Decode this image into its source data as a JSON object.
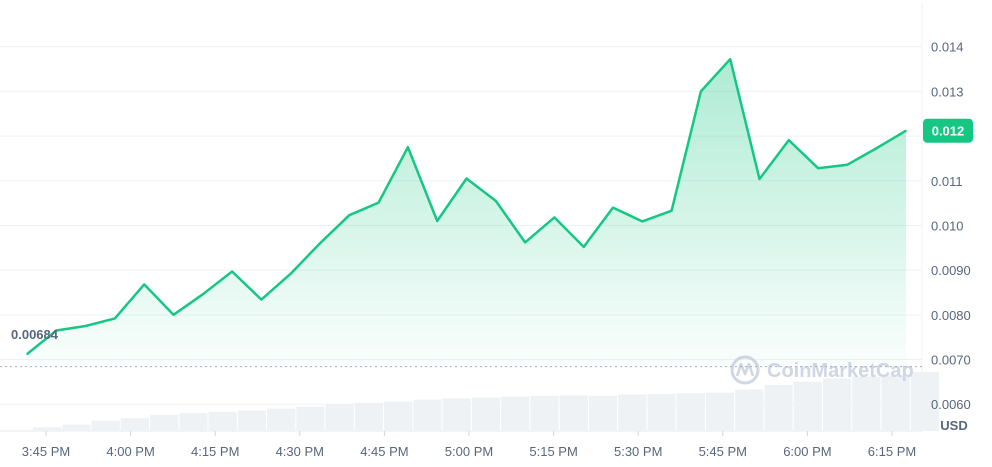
{
  "chart_data": {
    "type": "area",
    "unit_label": "USD",
    "watermark": "CoinMarketCap",
    "line_color": "#16c784",
    "volume_color": "#eff2f5",
    "x_ticks": [
      "3:45 PM",
      "4:00 PM",
      "4:15 PM",
      "4:30 PM",
      "4:45 PM",
      "5:00 PM",
      "5:15 PM",
      "5:30 PM",
      "5:45 PM",
      "6:00 PM",
      "6:15 PM"
    ],
    "y_ticks": [
      "0.014",
      "0.013",
      "0.012",
      "0.011",
      "0.010",
      "0.0090",
      "0.0080",
      "0.0070",
      "0.0060"
    ],
    "y_tick_values": [
      0.014,
      0.013,
      0.012,
      0.011,
      0.01,
      0.009,
      0.008,
      0.007,
      0.006
    ],
    "ylim": [
      0.0054,
      0.015
    ],
    "open_price_label": "0.00684",
    "open_price": 0.00684,
    "current_price_label": "0.012",
    "current_price": 0.01212,
    "price_values": [
      0.00712,
      0.00765,
      0.00775,
      0.00792,
      0.00868,
      0.008,
      0.00846,
      0.00897,
      0.00834,
      0.00892,
      0.0096,
      0.01023,
      0.01051,
      0.01175,
      0.0101,
      0.01105,
      0.01055,
      0.00962,
      0.01018,
      0.00952,
      0.0104,
      0.01009,
      0.01033,
      0.013,
      0.01372,
      0.01104,
      0.01191,
      0.01128,
      0.01136,
      0.01173,
      0.01212
    ],
    "volume_values": [
      0.06,
      0.1,
      0.16,
      0.2,
      0.25,
      0.28,
      0.3,
      0.32,
      0.35,
      0.38,
      0.42,
      0.44,
      0.46,
      0.49,
      0.51,
      0.52,
      0.54,
      0.55,
      0.56,
      0.55,
      0.57,
      0.58,
      0.59,
      0.6,
      0.65,
      0.72,
      0.77,
      0.82,
      0.85,
      0.87,
      0.92
    ]
  }
}
